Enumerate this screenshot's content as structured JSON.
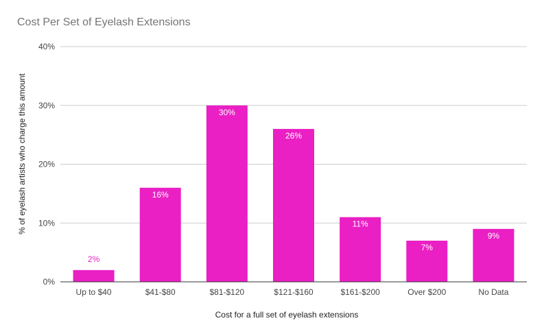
{
  "chart_data": {
    "type": "bar",
    "title": "Cost Per Set of Eyelash Extensions",
    "xlabel": "Cost for a full set of eyelash extensions",
    "ylabel": "% of eyelash artists who charge this amount",
    "categories": [
      "Up to $40",
      "$41-$80",
      "$81-$120",
      "$121-$160",
      "$161-$200",
      "Over $200",
      "No Data"
    ],
    "values": [
      2,
      16,
      30,
      26,
      11,
      7,
      9
    ],
    "data_labels": [
      "2%",
      "16%",
      "30%",
      "26%",
      "11%",
      "7%",
      "9%"
    ],
    "ylim": [
      0,
      40
    ],
    "yticks": [
      0,
      10,
      20,
      30,
      40
    ],
    "ytick_labels": [
      "0%",
      "10%",
      "20%",
      "30%",
      "40%"
    ],
    "grid": true,
    "legend": "none",
    "colors": {
      "bar": "#ea1fc4",
      "label_inside": "#ffffff",
      "label_outside": "#ea1fc4",
      "gridline": "#cccccc",
      "baseline": "#333333"
    }
  }
}
